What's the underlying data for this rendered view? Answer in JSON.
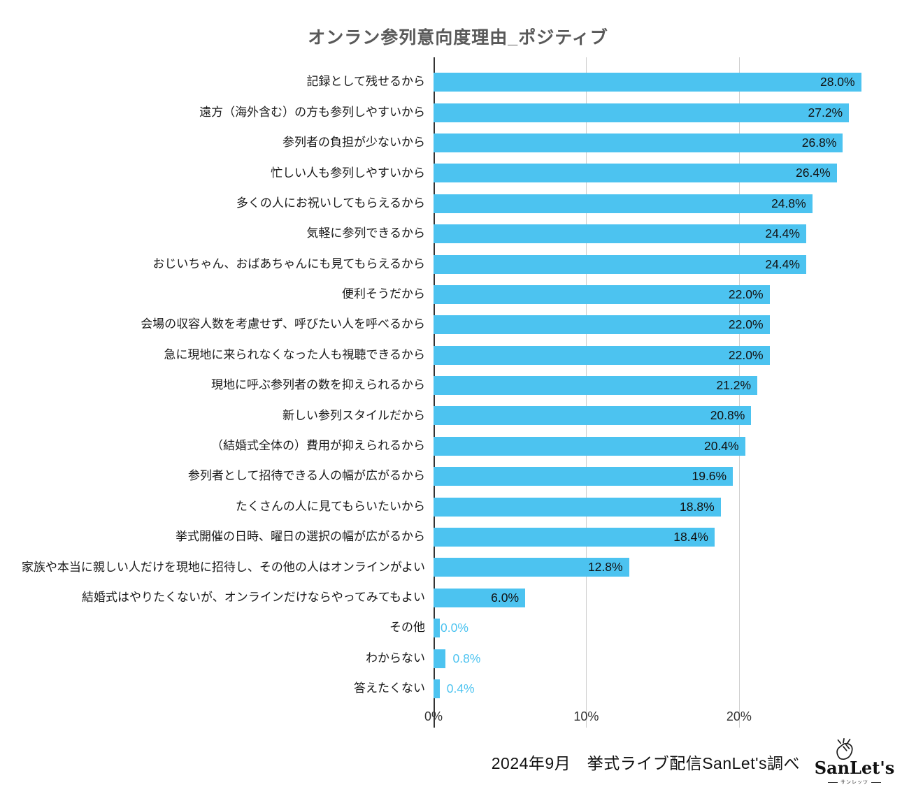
{
  "title": "オンラン参列意向度理由_ポジティブ",
  "colors": {
    "bar": "#4CC3F0",
    "grid": "#cfcfcf",
    "axis": "#333333",
    "title": "#595959",
    "value_inside": "#111111",
    "value_outside": "#4CC3F0"
  },
  "chart_data": {
    "type": "bar",
    "orientation": "horizontal",
    "title": "オンラン参列意向度理由_ポジティブ",
    "xlabel": "",
    "ylabel": "",
    "xlim": [
      0,
      29.3
    ],
    "grid": true,
    "categories": [
      "記録として残せるから",
      "遠方（海外含む）の方も参列しやすいから",
      "参列者の負担が少ないから",
      "忙しい人も参列しやすいから",
      "多くの人にお祝いしてもらえるから",
      "気軽に参列できるから",
      "おじいちゃん、おばあちゃんにも見てもらえるから",
      "便利そうだから",
      "会場の収容人数を考慮せず、呼びたい人を呼べるから",
      "急に現地に来られなくなった人も視聴できるから",
      "現地に呼ぶ参列者の数を抑えられるから",
      "新しい参列スタイルだから",
      "（結婚式全体の）費用が抑えられるから",
      "参列者として招待できる人の幅が広がるから",
      "たくさんの人に見てもらいたいから",
      "挙式開催の日時、曜日の選択の幅が広がるから",
      "家族や本当に親しい人だけを現地に招待し、その他の人はオンラインがよい",
      "結婚式はやりたくないが、オンラインだけならやってみてもよい",
      "その他",
      "わからない",
      "答えたくない"
    ],
    "values": [
      28.0,
      27.2,
      26.8,
      26.4,
      24.8,
      24.4,
      24.4,
      22.0,
      22.0,
      22.0,
      21.2,
      20.8,
      20.4,
      19.6,
      18.8,
      18.4,
      12.8,
      6.0,
      0.0,
      0.8,
      0.4
    ],
    "value_labels": [
      "28.0%",
      "27.2%",
      "26.8%",
      "26.4%",
      "24.8%",
      "24.4%",
      "24.4%",
      "22.0%",
      "22.0%",
      "22.0%",
      "21.2%",
      "20.8%",
      "20.4%",
      "19.6%",
      "18.8%",
      "18.4%",
      "12.8%",
      "6.0%",
      "0.0%",
      "0.8%",
      "0.4%"
    ],
    "x_ticks": [
      {
        "value": 0,
        "label": "0%"
      },
      {
        "value": 10,
        "label": "10%"
      },
      {
        "value": 20,
        "label": "20%"
      }
    ],
    "legend": null
  },
  "footer": {
    "source_text": "2024年9月　挙式ライブ配信SanLet's調べ",
    "logo_text": "SanLet's",
    "logo_subtext": "サンレッツ"
  }
}
